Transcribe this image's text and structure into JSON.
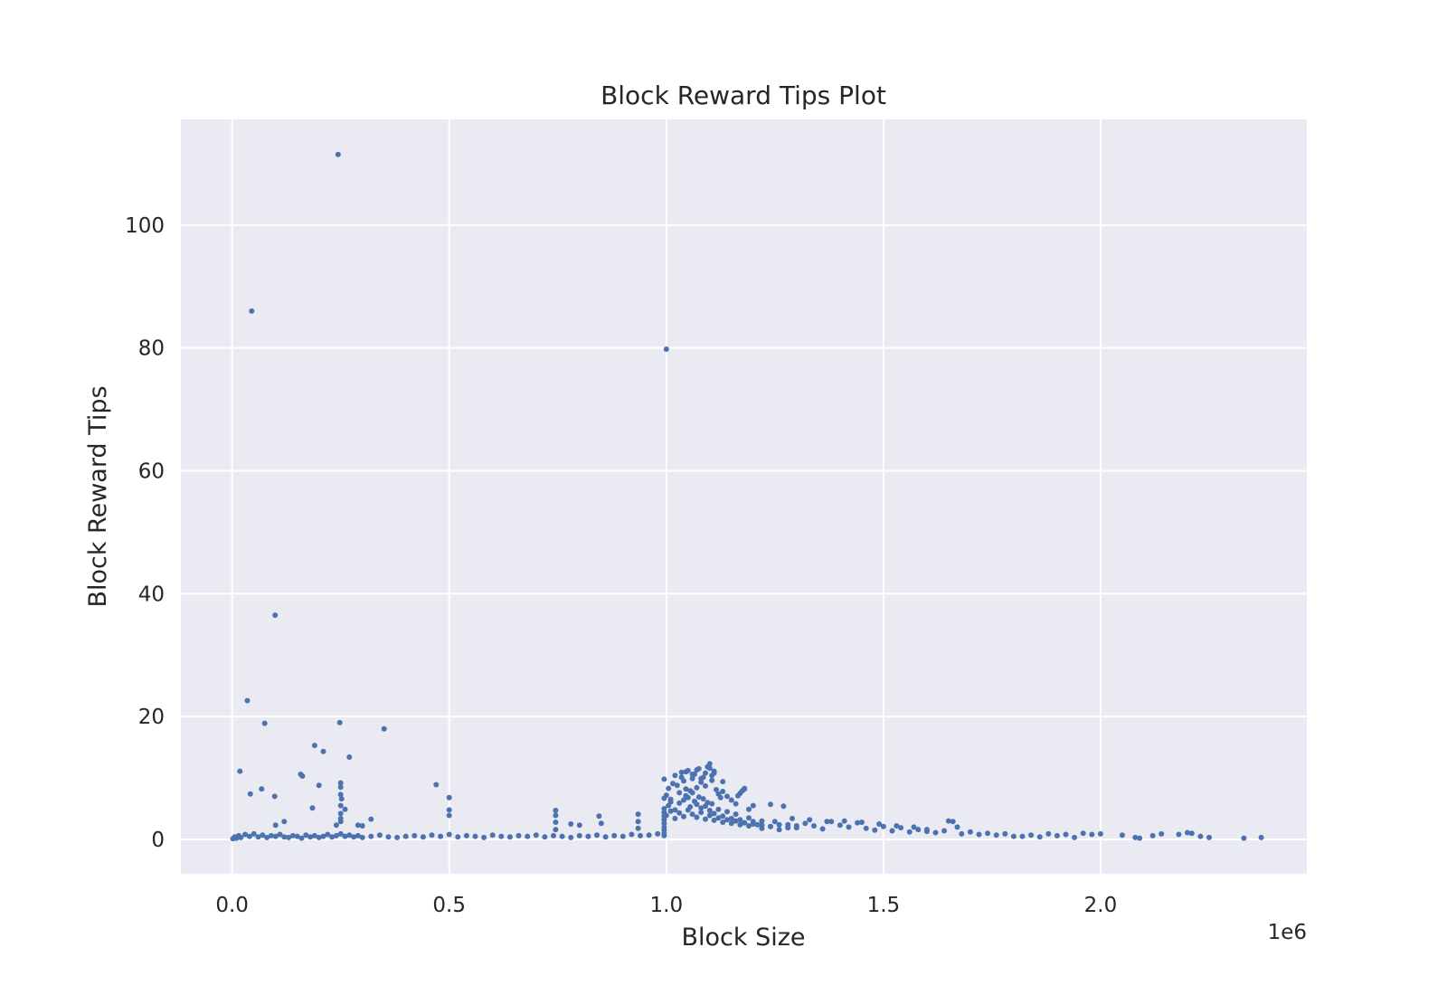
{
  "chart_data": {
    "type": "scatter",
    "title": "Block Reward Tips Plot",
    "xlabel": "Block Size",
    "ylabel": "Block Reward Tips",
    "x_offset_label": "1e6",
    "x_scale": 1000000,
    "xlim": [
      -0.118,
      2.475
    ],
    "ylim": [
      -5.6,
      117.2
    ],
    "x_ticks": [
      0.0,
      0.5,
      1.0,
      1.5,
      2.0
    ],
    "x_tick_labels": [
      "0.0",
      "0.5",
      "1.0",
      "1.5",
      "2.0"
    ],
    "y_ticks": [
      0,
      20,
      40,
      60,
      80,
      100
    ],
    "y_tick_labels": [
      "0",
      "20",
      "40",
      "60",
      "80",
      "100"
    ],
    "grid": true,
    "background_color": "#eaeaf2",
    "point_color": "#4c72b0",
    "series": [
      {
        "x": [
          0.002,
          0.006,
          0.01,
          0.015,
          0.02,
          0.03,
          0.04,
          0.05,
          0.06,
          0.07,
          0.08,
          0.09,
          0.1,
          0.11,
          0.12,
          0.13,
          0.14,
          0.15,
          0.16,
          0.17,
          0.18,
          0.19,
          0.2,
          0.21,
          0.22,
          0.23,
          0.24,
          0.25,
          0.26,
          0.27,
          0.28,
          0.29,
          0.3,
          0.32,
          0.34,
          0.36,
          0.38,
          0.4,
          0.42,
          0.44,
          0.46,
          0.48,
          0.5,
          0.52,
          0.54,
          0.56,
          0.58,
          0.6,
          0.62,
          0.64,
          0.66,
          0.68,
          0.7,
          0.72,
          0.74,
          0.76,
          0.78,
          0.8,
          0.82,
          0.84,
          0.86,
          0.88,
          0.9,
          0.92,
          0.94,
          0.96,
          0.98,
          0.018,
          0.035,
          0.042,
          0.068,
          0.075,
          0.098,
          0.1,
          0.12,
          0.158,
          0.162,
          0.185,
          0.19,
          0.2,
          0.21,
          0.24,
          0.248,
          0.25,
          0.252,
          0.27,
          0.35,
          0.47,
          0.5,
          0.5,
          0.5,
          0.25,
          0.25,
          0.25,
          0.25,
          0.25,
          0.25,
          0.26,
          0.32,
          0.29,
          0.3,
          0.745,
          0.745,
          0.745,
          0.745,
          0.78,
          0.8,
          0.845,
          0.85,
          0.935,
          0.935,
          0.935,
          0.995,
          0.995,
          0.995,
          0.995,
          0.995,
          0.995,
          0.995,
          0.995,
          0.995,
          0.995,
          0.995,
          1.0,
          1.005,
          1.01,
          1.015,
          1.02,
          1.025,
          1.03,
          1.035,
          1.04,
          1.045,
          1.05,
          1.055,
          1.06,
          1.065,
          1.07,
          1.075,
          1.08,
          1.085,
          1.09,
          1.095,
          1.1,
          1.105,
          1.11,
          1.115,
          1.12,
          1.125,
          1.13,
          1.14,
          1.15,
          1.16,
          1.17,
          1.18,
          1.19,
          1.2,
          1.005,
          1.01,
          1.02,
          1.03,
          1.04,
          1.045,
          1.05,
          1.055,
          1.06,
          1.065,
          1.07,
          1.075,
          1.08,
          1.085,
          1.09,
          1.095,
          1.1,
          1.105,
          1.11,
          1.12,
          1.13,
          1.14,
          1.15,
          1.16,
          1.17,
          1.18,
          1.19,
          1.2,
          1.21,
          1.22,
          1.0,
          1.01,
          1.02,
          1.03,
          1.04,
          1.05,
          1.06,
          1.07,
          1.08,
          1.09,
          1.1,
          1.11,
          1.12,
          1.13,
          1.14,
          1.15,
          1.16,
          1.17,
          1.18,
          1.19,
          1.2,
          1.22,
          1.24,
          1.26,
          1.28,
          1.3,
          1.035,
          1.045,
          1.06,
          1.07,
          1.08,
          1.09,
          1.1,
          1.105,
          1.11,
          1.13,
          1.165,
          1.175,
          1.18,
          1.24,
          1.27,
          1.22,
          1.24,
          1.26,
          1.28,
          1.3,
          1.32,
          1.34,
          1.36,
          1.38,
          1.4,
          1.42,
          1.44,
          1.46,
          1.48,
          1.5,
          1.52,
          1.54,
          1.56,
          1.58,
          1.6,
          1.62,
          1.64,
          1.66,
          1.68,
          1.7,
          1.72,
          1.74,
          1.76,
          1.78,
          1.8,
          1.25,
          1.29,
          1.33,
          1.37,
          1.41,
          1.45,
          1.49,
          1.53,
          1.57,
          1.6,
          1.65,
          1.67,
          1.82,
          1.84,
          1.86,
          1.88,
          1.9,
          1.92,
          1.94,
          1.96,
          1.98,
          2.0,
          2.05,
          2.08,
          2.09,
          2.12,
          2.14,
          2.18,
          2.2,
          2.21,
          2.23,
          2.25,
          2.33,
          2.37,
          0.244,
          0.045,
          1.0,
          0.099
        ],
        "y": [
          0.1,
          0.4,
          0.2,
          0.6,
          0.3,
          0.8,
          0.5,
          0.9,
          0.4,
          0.7,
          0.3,
          0.6,
          0.5,
          0.8,
          0.4,
          0.3,
          0.6,
          0.5,
          0.2,
          0.7,
          0.4,
          0.6,
          0.3,
          0.5,
          0.8,
          0.4,
          0.6,
          0.9,
          0.5,
          0.7,
          0.4,
          0.6,
          0.3,
          0.5,
          0.7,
          0.4,
          0.3,
          0.5,
          0.6,
          0.4,
          0.7,
          0.5,
          0.8,
          0.4,
          0.6,
          0.5,
          0.3,
          0.7,
          0.5,
          0.4,
          0.6,
          0.5,
          0.7,
          0.4,
          0.6,
          0.5,
          0.3,
          0.6,
          0.5,
          0.7,
          0.4,
          0.6,
          0.5,
          0.8,
          0.6,
          0.7,
          0.9,
          11.1,
          22.6,
          7.4,
          8.2,
          18.9,
          7.0,
          2.3,
          2.9,
          10.6,
          10.3,
          5.1,
          15.3,
          8.8,
          14.3,
          2.3,
          19.0,
          9.2,
          6.6,
          13.4,
          18.0,
          8.9,
          6.8,
          4.8,
          3.9,
          4.2,
          5.5,
          7.3,
          8.5,
          2.9,
          3.4,
          4.9,
          3.3,
          2.3,
          2.2,
          4.7,
          3.9,
          2.8,
          1.6,
          2.5,
          2.3,
          3.8,
          2.6,
          4.1,
          2.9,
          1.8,
          5.0,
          4.4,
          3.8,
          3.2,
          2.6,
          2.0,
          1.5,
          1.0,
          0.6,
          6.7,
          9.8,
          7.2,
          8.3,
          6.5,
          9.1,
          10.4,
          8.8,
          7.6,
          10.9,
          9.5,
          8.2,
          11.2,
          7.9,
          9.9,
          10.6,
          8.4,
          11.5,
          9.3,
          10.1,
          8.7,
          11.8,
          12.3,
          9.6,
          10.8,
          8.1,
          7.4,
          6.8,
          7.8,
          7.0,
          6.4,
          5.8,
          7.5,
          8.2,
          4.9,
          5.5,
          5.5,
          6.1,
          4.8,
          5.9,
          6.4,
          7.1,
          6.8,
          5.3,
          7.6,
          6.2,
          5.7,
          6.9,
          5.1,
          6.6,
          5.4,
          6.0,
          4.7,
          5.8,
          4.2,
          4.9,
          3.8,
          4.5,
          3.4,
          4.1,
          3.2,
          2.7,
          3.5,
          2.9,
          2.4,
          3.0,
          3.9,
          4.6,
          3.4,
          4.3,
          3.7,
          4.8,
          4.1,
          3.6,
          4.4,
          3.3,
          3.9,
          3.1,
          3.5,
          2.8,
          3.2,
          2.6,
          3.0,
          2.4,
          2.7,
          2.2,
          2.5,
          2.3,
          2.1,
          2.4,
          1.9,
          2.2,
          10.1,
          11.0,
          10.6,
          11.3,
          9.9,
          10.8,
          11.6,
          10.4,
          11.1,
          9.4,
          7.1,
          7.9,
          8.3,
          5.7,
          5.4,
          1.8,
          2.1,
          1.6,
          2.4,
          1.9,
          2.6,
          2.2,
          1.7,
          2.9,
          2.3,
          2.0,
          2.7,
          1.8,
          1.5,
          2.1,
          1.4,
          1.9,
          1.2,
          1.6,
          1.3,
          1.1,
          1.4,
          2.9,
          0.9,
          1.2,
          0.8,
          1.0,
          0.7,
          0.9,
          0.5,
          2.9,
          3.4,
          3.2,
          2.9,
          3.0,
          2.8,
          2.5,
          2.2,
          2.0,
          1.6,
          3.0,
          2.0,
          0.5,
          0.7,
          0.4,
          0.9,
          0.6,
          0.8,
          0.3,
          1.0,
          0.8,
          0.9,
          0.7,
          0.3,
          0.2,
          0.6,
          0.9,
          0.8,
          1.1,
          1.0,
          0.5,
          0.3,
          0.2,
          0.3,
          111.5,
          86.0,
          79.8,
          36.5
        ]
      }
    ]
  }
}
